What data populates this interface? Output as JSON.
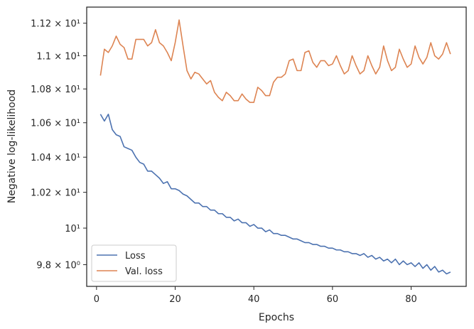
{
  "chart_data": {
    "type": "line",
    "xlabel": "Epochs",
    "ylabel": "Negative log-likelihood",
    "xlim": [
      -2.5,
      94
    ],
    "ylim": [
      9.683,
      11.3
    ],
    "y_scale": "log",
    "grid": false,
    "legend_position": "lower-left",
    "x_ticks": [
      0,
      20,
      40,
      60,
      80
    ],
    "y_ticks": [
      {
        "value": 9.8,
        "label": "9.8 × 10⁰"
      },
      {
        "value": 10.0,
        "label": "10¹"
      },
      {
        "value": 10.2,
        "label": "1.02 × 10¹"
      },
      {
        "value": 10.4,
        "label": "1.04 × 10¹"
      },
      {
        "value": 10.6,
        "label": "1.06 × 10¹"
      },
      {
        "value": 10.8,
        "label": "1.08 × 10¹"
      },
      {
        "value": 11.0,
        "label": "1.1 × 10¹"
      },
      {
        "value": 11.2,
        "label": "1.12 × 10¹"
      }
    ],
    "series": [
      {
        "name": "Loss",
        "color": "#4c72b0",
        "x": [
          1,
          2,
          3,
          4,
          5,
          6,
          7,
          8,
          9,
          10,
          11,
          12,
          13,
          14,
          15,
          16,
          17,
          18,
          19,
          20,
          21,
          22,
          23,
          24,
          25,
          26,
          27,
          28,
          29,
          30,
          31,
          32,
          33,
          34,
          35,
          36,
          37,
          38,
          39,
          40,
          41,
          42,
          43,
          44,
          45,
          46,
          47,
          48,
          49,
          50,
          51,
          52,
          53,
          54,
          55,
          56,
          57,
          58,
          59,
          60,
          61,
          62,
          63,
          64,
          65,
          66,
          67,
          68,
          69,
          70,
          71,
          72,
          73,
          74,
          75,
          76,
          77,
          78,
          79,
          80,
          81,
          82,
          83,
          84,
          85,
          86,
          87,
          88,
          89,
          90
        ],
        "values": [
          10.65,
          10.61,
          10.65,
          10.56,
          10.53,
          10.52,
          10.46,
          10.45,
          10.44,
          10.4,
          10.37,
          10.36,
          10.32,
          10.32,
          10.3,
          10.28,
          10.25,
          10.26,
          10.22,
          10.22,
          10.21,
          10.19,
          10.18,
          10.16,
          10.14,
          10.14,
          10.12,
          10.12,
          10.1,
          10.1,
          10.08,
          10.08,
          10.06,
          10.06,
          10.04,
          10.05,
          10.03,
          10.03,
          10.01,
          10.02,
          10.0,
          10.0,
          9.98,
          9.99,
          9.97,
          9.97,
          9.96,
          9.96,
          9.95,
          9.94,
          9.94,
          9.93,
          9.92,
          9.92,
          9.91,
          9.91,
          9.9,
          9.9,
          9.89,
          9.89,
          9.88,
          9.88,
          9.87,
          9.87,
          9.86,
          9.86,
          9.85,
          9.86,
          9.84,
          9.85,
          9.83,
          9.84,
          9.82,
          9.83,
          9.81,
          9.83,
          9.8,
          9.82,
          9.8,
          9.81,
          9.79,
          9.81,
          9.78,
          9.8,
          9.77,
          9.79,
          9.76,
          9.77,
          9.75,
          9.76
        ]
      },
      {
        "name": "Val. loss",
        "color": "#dd8452",
        "x": [
          1,
          2,
          3,
          4,
          5,
          6,
          7,
          8,
          9,
          10,
          11,
          12,
          13,
          14,
          15,
          16,
          17,
          18,
          19,
          20,
          21,
          22,
          23,
          24,
          25,
          26,
          27,
          28,
          29,
          30,
          31,
          32,
          33,
          34,
          35,
          36,
          37,
          38,
          39,
          40,
          41,
          42,
          43,
          44,
          45,
          46,
          47,
          48,
          49,
          50,
          51,
          52,
          53,
          54,
          55,
          56,
          57,
          58,
          59,
          60,
          61,
          62,
          63,
          64,
          65,
          66,
          67,
          68,
          69,
          70,
          71,
          72,
          73,
          74,
          75,
          76,
          77,
          78,
          79,
          80,
          81,
          82,
          83,
          84,
          85,
          86,
          87,
          88,
          89,
          90
        ],
        "values": [
          10.88,
          11.04,
          11.02,
          11.06,
          11.12,
          11.07,
          11.05,
          10.98,
          10.98,
          11.1,
          11.1,
          11.1,
          11.06,
          11.08,
          11.16,
          11.08,
          11.06,
          11.02,
          10.97,
          11.08,
          11.22,
          11.06,
          10.91,
          10.86,
          10.9,
          10.89,
          10.86,
          10.83,
          10.85,
          10.78,
          10.75,
          10.73,
          10.78,
          10.76,
          10.73,
          10.73,
          10.77,
          10.74,
          10.72,
          10.72,
          10.81,
          10.79,
          10.76,
          10.76,
          10.84,
          10.87,
          10.87,
          10.89,
          10.97,
          10.98,
          10.91,
          10.91,
          11.02,
          11.03,
          10.96,
          10.93,
          10.97,
          10.97,
          10.94,
          10.95,
          11.0,
          10.94,
          10.89,
          10.91,
          11.0,
          10.94,
          10.89,
          10.91,
          11.0,
          10.94,
          10.89,
          10.93,
          11.06,
          10.97,
          10.91,
          10.93,
          11.04,
          10.98,
          10.93,
          10.95,
          11.06,
          10.99,
          10.95,
          10.99,
          11.08,
          11.0,
          10.98,
          11.01,
          11.08,
          11.01
        ]
      }
    ]
  }
}
